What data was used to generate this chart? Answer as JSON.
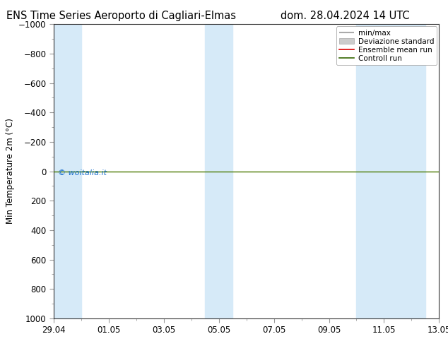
{
  "title_left": "ENS Time Series Aeroporto di Cagliari-Elmas",
  "title_right": "dom. 28.04.2024 14 UTC",
  "ylabel": "Min Temperature 2m (°C)",
  "ylim_bottom": 1000,
  "ylim_top": -1000,
  "yticks": [
    -1000,
    -800,
    -600,
    -400,
    -200,
    0,
    200,
    400,
    600,
    800,
    1000
  ],
  "xtick_labels": [
    "29.04",
    "01.05",
    "03.05",
    "05.05",
    "07.05",
    "09.05",
    "11.05",
    "13.05"
  ],
  "xtick_positions": [
    0,
    2,
    4,
    6,
    8,
    10,
    12,
    14
  ],
  "x_start": 0,
  "x_end": 14,
  "blue_bands": [
    [
      0.0,
      1.0
    ],
    [
      5.5,
      6.5
    ],
    [
      11.0,
      12.0
    ],
    [
      12.0,
      13.5
    ]
  ],
  "green_line_y": 0,
  "background_color": "#ffffff",
  "plot_bg_color": "#ffffff",
  "blue_band_color": "#d6eaf8",
  "watermark": "© woitalia.it",
  "watermark_color": "#1a6fcc",
  "title_fontsize": 10.5,
  "axis_label_fontsize": 8.5,
  "tick_fontsize": 8.5,
  "legend_fontsize": 7.5
}
